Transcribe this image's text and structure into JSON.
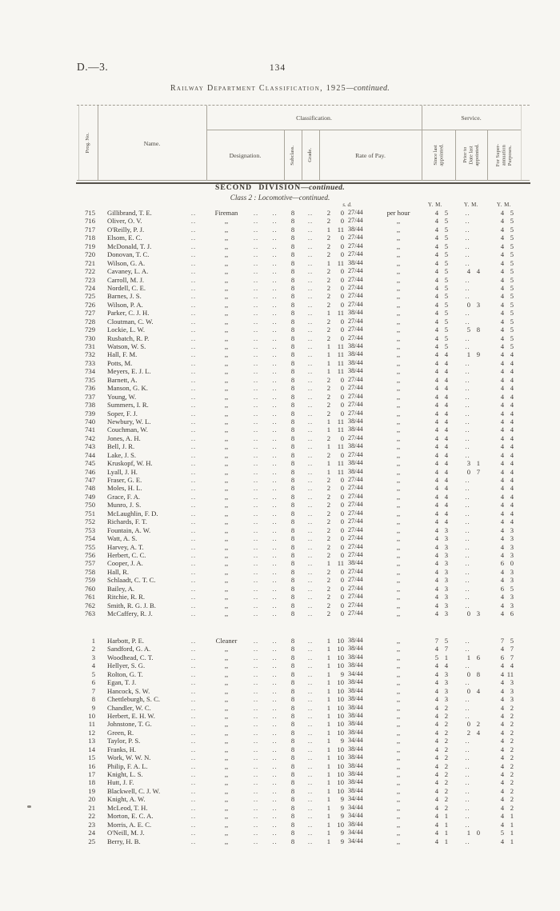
{
  "page": {
    "doc_ref": "D.—3.",
    "page_number": "134",
    "title_main": "Railway Department Classification, 1925",
    "title_suffix": "—continued."
  },
  "table_header": {
    "prog": "Prog. No.",
    "name": "Name.",
    "classification": "Classification.",
    "service": "Service.",
    "designation": "Designation.",
    "subclass": "Subclass.",
    "grade": "Grade.",
    "rate_of_pay": "Rate of Pay.",
    "since_last_appointed": "Since last\nappointed.",
    "prior_to_date_last_appointed": "Prior to\nDate last\nappointed.",
    "for_superannuation_purposes": "For Super-\nannuation\nPurposes."
  },
  "section": {
    "division_main": "SECOND DIVISION",
    "division_suffix": "—continued.",
    "class_line": "Class 2 :  Locomotive—continued.",
    "sd_label": "s.  d.",
    "ym_label": "Y. M."
  },
  "marks": {
    "leader": "..",
    "empty": "..",
    "ditto": ",,"
  },
  "blocks": [
    {
      "designation_first": "Fireman",
      "rows": [
        [
          "715",
          "Gillibrand, T. E.",
          "Fireman",
          "8",
          "2",
          "0",
          "27/44",
          "per hour",
          "4 5",
          "..",
          "4 5"
        ],
        [
          "716",
          "Oliver, O. V.",
          ",,",
          "8",
          "2",
          "0",
          "27/44",
          ",,",
          "4 5",
          "..",
          "4 5"
        ],
        [
          "717",
          "O'Reilly, P. J.",
          ",,",
          "8",
          "1",
          "11",
          "38/44",
          ",,",
          "4 5",
          "..",
          "4 5"
        ],
        [
          "718",
          "Elsom, E. C.",
          ",,",
          "8",
          "2",
          "0",
          "27/44",
          ",,",
          "4 5",
          "..",
          "4 5"
        ],
        [
          "719",
          "McDonald, T. J.",
          ",,",
          "8",
          "2",
          "0",
          "27/44",
          ",,",
          "4 5",
          "..",
          "4 5"
        ],
        [
          "720",
          "Donovan, T. C.",
          ",,",
          "8",
          "2",
          "0",
          "27/44",
          ",,",
          "4 5",
          "..",
          "4 5"
        ],
        [
          "721",
          "Wilson, G. A.",
          ",,",
          "8",
          "1",
          "11",
          "38/44",
          ",,",
          "4 5",
          "..",
          "4 5"
        ],
        [
          "722",
          "Cavaney, L. A.",
          ",,",
          "8",
          "2",
          "0",
          "27/44",
          ",,",
          "4 5",
          "4 4",
          "4 5"
        ],
        [
          "723",
          "Carroll, M. J.",
          ",,",
          "8",
          "2",
          "0",
          "27/44",
          ",,",
          "4 5",
          "..",
          "4 5"
        ],
        [
          "724",
          "Nordell, C. E.",
          ",,",
          "8",
          "2",
          "0",
          "27/44",
          ",,",
          "4 5",
          "..",
          "4 5"
        ],
        [
          "725",
          "Barnes, J. S.",
          ",,",
          "8",
          "2",
          "0",
          "27/44",
          ",,",
          "4 5",
          "..",
          "4 5"
        ],
        [
          "726",
          "Wilson, P. A.",
          ",,",
          "8",
          "2",
          "0",
          "27/44",
          ",,",
          "4 5",
          "0 3",
          "4 5"
        ],
        [
          "727",
          "Parker, C. J. H.",
          ",,",
          "8",
          "1",
          "11",
          "38/44",
          ",,",
          "4 5",
          "..",
          "4 5"
        ],
        [
          "728",
          "Cloutman, C. W.",
          ",,",
          "8",
          "2",
          "0",
          "27/44",
          ",,",
          "4 5",
          "..",
          "4 5"
        ],
        [
          "729",
          "Lockie, L. W.",
          ",,",
          "8",
          "2",
          "0",
          "27/44",
          ",,",
          "4 5",
          "5 8",
          "4 5"
        ],
        [
          "730",
          "Rusbatch, R. P.",
          ",,",
          "8",
          "2",
          "0",
          "27/44",
          ",,",
          "4 5",
          "..",
          "4 5"
        ],
        [
          "731",
          "Watson, W. S.",
          ",,",
          "8",
          "1",
          "11",
          "38/44",
          ",,",
          "4 5",
          "..",
          "4 5"
        ],
        [
          "732",
          "Hall, F. M.",
          ",,",
          "8",
          "1",
          "11",
          "38/44",
          ",,",
          "4 4",
          "1 9",
          "4 4"
        ],
        [
          "733",
          "Potts, M.",
          ",,",
          "8",
          "1",
          "11",
          "38/44",
          ",,",
          "4 4",
          "..",
          "4 4"
        ],
        [
          "734",
          "Meyers, E. J. L.",
          ",,",
          "8",
          "1",
          "11",
          "38/44",
          ",,",
          "4 4",
          "..",
          "4 4"
        ],
        [
          "735",
          "Barnett, A.",
          ",,",
          "8",
          "2",
          "0",
          "27/44",
          ",,",
          "4 4",
          "..",
          "4 4"
        ],
        [
          "736",
          "Manson, G. K.",
          ",,",
          "8",
          "2",
          "0",
          "27/44",
          ",,",
          "4 4",
          "..",
          "4 4"
        ],
        [
          "737",
          "Young, W.",
          ",,",
          "8",
          "2",
          "0",
          "27/44",
          ",,",
          "4 4",
          "..",
          "4 4"
        ],
        [
          "738",
          "Summers, I. R.",
          ",,",
          "8",
          "2",
          "0",
          "27/44",
          ",,",
          "4 4",
          "..",
          "4 4"
        ],
        [
          "739",
          "Soper, F. J.",
          ",,",
          "8",
          "2",
          "0",
          "27/44",
          ",,",
          "4 4",
          "..",
          "4 4"
        ],
        [
          "740",
          "Newbury, W. L.",
          ",,",
          "8",
          "1",
          "11",
          "38/44",
          ",,",
          "4 4",
          "..",
          "4 4"
        ],
        [
          "741",
          "Couchman, W.",
          ",,",
          "8",
          "1",
          "11",
          "38/44",
          ",,",
          "4 4",
          "..",
          "4 4"
        ],
        [
          "742",
          "Jones, A. H.",
          ",,",
          "8",
          "2",
          "0",
          "27/44",
          ",,",
          "4 4",
          "..",
          "4 4"
        ],
        [
          "743",
          "Bell, J. R.",
          ",,",
          "8",
          "1",
          "11",
          "38/44",
          ",,",
          "4 4",
          "..",
          "4 4"
        ],
        [
          "744",
          "Lake, J. S.",
          ",,",
          "8",
          "2",
          "0",
          "27/44",
          ",,",
          "4 4",
          "..",
          "4 4"
        ],
        [
          "745",
          "Kruskopf, W. H.",
          ",,",
          "8",
          "1",
          "11",
          "38/44",
          ",,",
          "4 4",
          "3 1",
          "4 4"
        ],
        [
          "746",
          "Lyall, J. H.",
          ",,",
          "8",
          "1",
          "11",
          "38/44",
          ",,",
          "4 4",
          "0 7",
          "4 4"
        ],
        [
          "747",
          "Fraser, G. E.",
          ",,",
          "8",
          "2",
          "0",
          "27/44",
          ",,",
          "4 4",
          "..",
          "4 4"
        ],
        [
          "748",
          "Moles, H. L.",
          ",,",
          "8",
          "2",
          "0",
          "27/44",
          ",,",
          "4 4",
          "..",
          "4 4"
        ],
        [
          "749",
          "Grace, F. A.",
          ",,",
          "8",
          "2",
          "0",
          "27/44",
          ",,",
          "4 4",
          "..",
          "4 4"
        ],
        [
          "750",
          "Munro, J. S.",
          ",,",
          "8",
          "2",
          "0",
          "27/44",
          ",,",
          "4 4",
          "..",
          "4 4"
        ],
        [
          "751",
          "McLaughlin, F. D.",
          ",,",
          "8",
          "2",
          "0",
          "27/44",
          ",,",
          "4 4",
          "..",
          "4 4"
        ],
        [
          "752",
          "Richards, F. T.",
          ",,",
          "8",
          "2",
          "0",
          "27/44",
          ",,",
          "4 4",
          "..",
          "4 4"
        ],
        [
          "753",
          "Fountain, A. W.",
          ",,",
          "8",
          "2",
          "0",
          "27/44",
          ",,",
          "4 3",
          "..",
          "4 3"
        ],
        [
          "754",
          "Watt, A. S.",
          ",,",
          "8",
          "2",
          "0",
          "27/44",
          ",,",
          "4 3",
          "..",
          "4 3"
        ],
        [
          "755",
          "Harvey, A. T.",
          ",,",
          "8",
          "2",
          "0",
          "27/44",
          ",,",
          "4 3",
          "..",
          "4 3"
        ],
        [
          "756",
          "Herbert, C. C.",
          ",,",
          "8",
          "2",
          "0",
          "27/44",
          ",,",
          "4 3",
          "..",
          "4 3"
        ],
        [
          "757",
          "Cooper, J. A.",
          ",,",
          "8",
          "1",
          "11",
          "38/44",
          ",,",
          "4 3",
          "..",
          "6 0"
        ],
        [
          "758",
          "Hall, R.",
          ",,",
          "8",
          "2",
          "0",
          "27/44",
          ",,",
          "4 3",
          "..",
          "4 3"
        ],
        [
          "759",
          "Schlaadt, C. T. C.",
          ",,",
          "8",
          "2",
          "0",
          "27/44",
          ",,",
          "4 3",
          "..",
          "4 3"
        ],
        [
          "760",
          "Bailey, A.",
          ",,",
          "8",
          "2",
          "0",
          "27/44",
          ",,",
          "4 3",
          "..",
          "6 5"
        ],
        [
          "761",
          "Ritchie, R. R.",
          ",,",
          "8",
          "2",
          "0",
          "27/44",
          ",,",
          "4 3",
          "..",
          "4 3"
        ],
        [
          "762",
          "Smith, R. G. J. B.",
          ",,",
          "8",
          "2",
          "0",
          "27/44",
          ",,",
          "4 3",
          "..",
          "4 3"
        ],
        [
          "763",
          "McCaffery, R. J.",
          ",,",
          "8",
          "2",
          "0",
          "27/44",
          ",,",
          "4 3",
          "0 3",
          "4 6"
        ]
      ]
    },
    {
      "designation_first": "Cleaner",
      "rows": [
        [
          "1",
          "Harbott, P. E.",
          "Cleaner",
          "8",
          "1",
          "10",
          "38/44",
          ",,",
          "7 5",
          "..",
          "7 5"
        ],
        [
          "2",
          "Sandford, G. A.",
          ",,",
          "8",
          "1",
          "10",
          "38/44",
          ",,",
          "4 7",
          "..",
          "4 7"
        ],
        [
          "3",
          "Woodhead, C. T.",
          ",,",
          "8",
          "1",
          "10",
          "38/44",
          ",,",
          "5 1",
          "1 6",
          "6 7"
        ],
        [
          "4",
          "Hellyer, S. G.",
          ",,",
          "8",
          "1",
          "10",
          "38/44",
          ",,",
          "4 4",
          "..",
          "4 4"
        ],
        [
          "5",
          "Rolton, G. T.",
          ",,",
          "8",
          "1",
          "9",
          "34/44",
          ",,",
          "4 3",
          "0 8",
          "4 11"
        ],
        [
          "6",
          "Egan, T. J.",
          ",,",
          "8",
          "1",
          "10",
          "38/44",
          ",,",
          "4 3",
          "..",
          "4 3"
        ],
        [
          "7",
          "Hancock, S. W.",
          ",,",
          "8",
          "1",
          "10",
          "38/44",
          ",,",
          "4 3",
          "0 4",
          "4 3"
        ],
        [
          "8",
          "Chettleburgh, S. C.",
          ",,",
          "8",
          "1",
          "10",
          "38/44",
          ",,",
          "4 3",
          "..",
          "4 3"
        ],
        [
          "9",
          "Chandler, W. C.",
          ",,",
          "8",
          "1",
          "10",
          "38/44",
          ",,",
          "4 2",
          "..",
          "4 2"
        ],
        [
          "10",
          "Herbert, E. H. W.",
          ",,",
          "8",
          "1",
          "10",
          "38/44",
          ",,",
          "4 2",
          "..",
          "4 2"
        ],
        [
          "11",
          "Johnstone, T. G.",
          ",,",
          "8",
          "1",
          "10",
          "38/44",
          ",,",
          "4 2",
          "0 2",
          "4 2"
        ],
        [
          "12",
          "Green, R.",
          ",,",
          "8",
          "1",
          "10",
          "38/44",
          ",,",
          "4 2",
          "2 4",
          "4 2"
        ],
        [
          "13",
          "Taylor, P. S.",
          ",,",
          "8",
          "1",
          "9",
          "34/44",
          ",,",
          "4 2",
          "..",
          "4 2"
        ],
        [
          "14",
          "Franks, H.",
          ",,",
          "8",
          "1",
          "10",
          "38/44",
          ",,",
          "4 2",
          "..",
          "4 2"
        ],
        [
          "15",
          "Work, W. W. N.",
          ",,",
          "8",
          "1",
          "10",
          "38/44",
          ",,",
          "4 2",
          "..",
          "4 2"
        ],
        [
          "16",
          "Philip, F. A. L.",
          ",,",
          "8",
          "1",
          "10",
          "38/44",
          ",,",
          "4 2",
          "..",
          "4 2"
        ],
        [
          "17",
          "Knight, L. S.",
          ",,",
          "8",
          "1",
          "10",
          "38/44",
          ",,",
          "4 2",
          "..",
          "4 2"
        ],
        [
          "18",
          "Hutt, J. F.",
          ",,",
          "8",
          "1",
          "10",
          "38/44",
          ",,",
          "4 2",
          "..",
          "4 2"
        ],
        [
          "19",
          "Blackwell, C. J. W.",
          ",,",
          "8",
          "1",
          "10",
          "38/44",
          ",,",
          "4 2",
          "..",
          "4 2"
        ],
        [
          "20",
          "Knight, A. W.",
          ",,",
          "8",
          "1",
          "9",
          "34/44",
          ",,",
          "4 2",
          "..",
          "4 2"
        ],
        [
          "21",
          "McLeod, T. H.",
          ",,",
          "8",
          "1",
          "9",
          "34/44",
          ",,",
          "4 2",
          "..",
          "4 2"
        ],
        [
          "22",
          "Morton, E. C. A.",
          ",,",
          "8",
          "1",
          "9",
          "34/44",
          ",,",
          "4 1",
          "..",
          "4 1"
        ],
        [
          "23",
          "Morris, A. E. C.",
          ",,",
          "8",
          "1",
          "10",
          "38/44",
          ",,",
          "4 1",
          "..",
          "4 1"
        ],
        [
          "24",
          "O'Neill, M. J.",
          ",,",
          "8",
          "1",
          "9",
          "34/44",
          ",,",
          "4 1",
          "1 0",
          "5 1"
        ],
        [
          "25",
          "Berry, H. B.",
          ",,",
          "8",
          "1",
          "9",
          "34/44",
          ",,",
          "4 1",
          "..",
          "4 1"
        ]
      ]
    }
  ]
}
